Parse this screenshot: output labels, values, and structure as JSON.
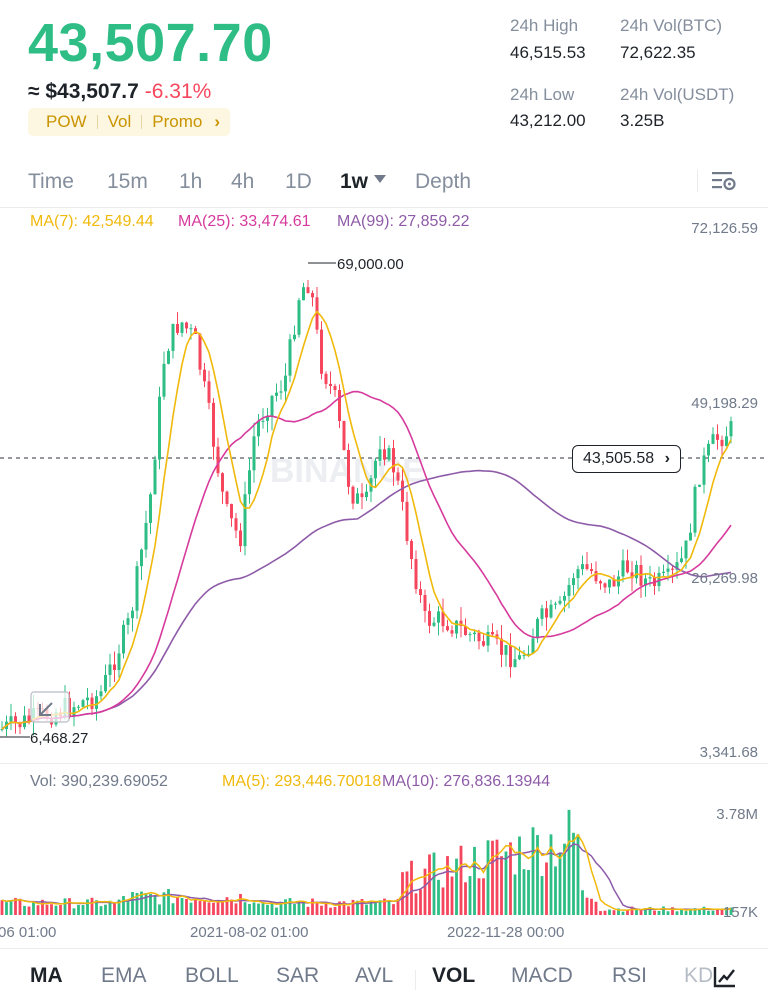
{
  "header": {
    "price": "43,507.70",
    "approx_label": "≈ $43,507.7",
    "change": "-6.31%",
    "tags": [
      "POW",
      "Vol",
      "Promo"
    ],
    "tags_arrow": "›"
  },
  "stats": {
    "high_label": "24h High",
    "high_value": "46,515.53",
    "low_label": "24h Low",
    "low_value": "43,212.00",
    "vol_btc_label": "24h Vol(BTC)",
    "vol_btc_value": "72,622.35",
    "vol_usdt_label": "24h Vol(USDT)",
    "vol_usdt_value": "3.25B"
  },
  "tabs": [
    {
      "label": "Time"
    },
    {
      "label": "15m"
    },
    {
      "label": "1h"
    },
    {
      "label": "4h"
    },
    {
      "label": "1D"
    },
    {
      "label": "1w"
    },
    {
      "label": "Depth"
    }
  ],
  "active_tab": "1w",
  "indicators": {
    "ma7": "MA(7): 42,549.44",
    "ma25": "MA(25): 33,474.61",
    "ma99": "MA(99): 27,859.22"
  },
  "main_chart": {
    "axis_labels": [
      "72,126.59",
      "49,198.29",
      "26,269.98",
      "3,341.68"
    ],
    "high_marker": "69,000.00",
    "low_marker": "6,468.27",
    "current_price_tag": "43,505.58",
    "current_price_arrow": "›",
    "watermark": "BINANCE"
  },
  "volume": {
    "vol": "Vol: 390,239.69052",
    "ma5": "MA(5): 293,446.70018",
    "ma10": "MA(10): 276,836.13944",
    "axis_labels": [
      "3.78M",
      "157K"
    ]
  },
  "time_axis": [
    "06 01:00",
    "2021-08-02 01:00",
    "2022-11-28 00:00"
  ],
  "bottom_tabs": [
    {
      "label": "MA"
    },
    {
      "label": "EMA"
    },
    {
      "label": "BOLL"
    },
    {
      "label": "SAR"
    },
    {
      "label": "AVL"
    },
    {
      "label": "VOL"
    },
    {
      "label": "MACD"
    },
    {
      "label": "RSI"
    },
    {
      "label": "KD"
    }
  ],
  "colors": {
    "up": "#2ebd85",
    "down": "#f6465d",
    "ma7": "#f0b90b",
    "ma25": "#d63a9c",
    "ma99": "#8e5ba8"
  }
}
